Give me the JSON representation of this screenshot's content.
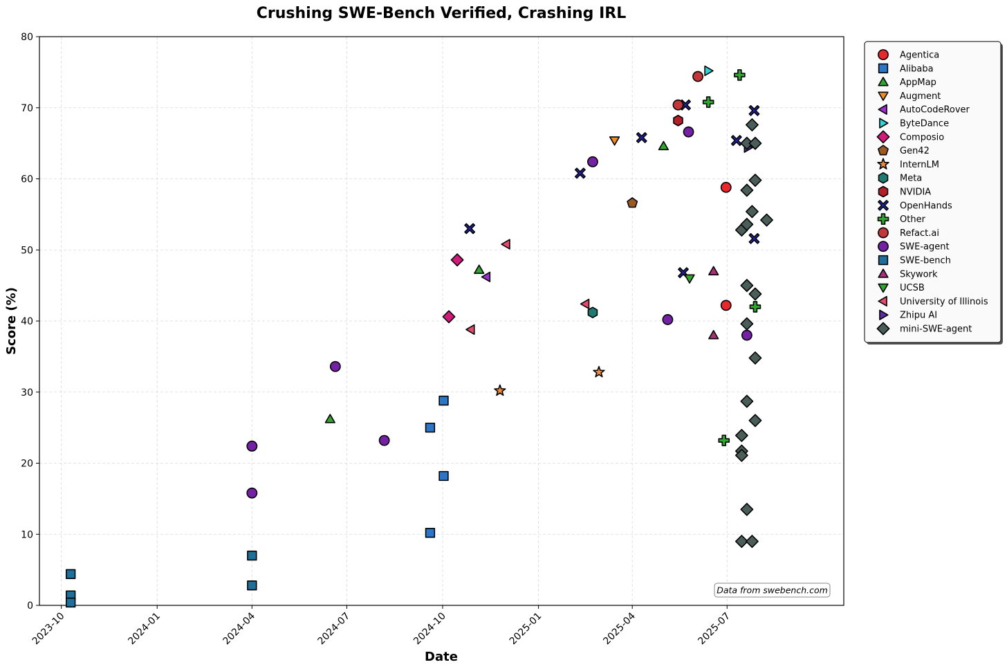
{
  "chart_data": {
    "type": "scatter",
    "title": "Crushing SWE-Bench Verified, Crashing IRL",
    "xlabel": "Date",
    "ylabel": "Score (%)",
    "xlim": [
      "2023-09-10",
      "2025-10-21"
    ],
    "ylim": [
      0,
      80
    ],
    "x_ticks": [
      "2023-10",
      "2024-01",
      "2024-04",
      "2024-07",
      "2024-10",
      "2025-01",
      "2025-04",
      "2025-07"
    ],
    "y_ticks": [
      0,
      10,
      20,
      30,
      40,
      50,
      60,
      70,
      80
    ],
    "grid": true,
    "legend_position": "outside-right",
    "annotation": "Data from swebench.com",
    "series": [
      {
        "name": "Agentica",
        "marker": "circle",
        "color": "#e8282b",
        "points": [
          [
            "2025-06-30",
            58.8
          ],
          [
            "2025-06-30",
            42.2
          ]
        ]
      },
      {
        "name": "Alibaba",
        "marker": "square",
        "color": "#2b76c9",
        "points": [
          [
            "2024-09-19",
            25.0
          ],
          [
            "2024-09-19",
            10.2
          ],
          [
            "2024-10-02",
            28.8
          ],
          [
            "2024-10-02",
            18.2
          ]
        ]
      },
      {
        "name": "AppMap",
        "marker": "triangle-up",
        "color": "#2fa62f",
        "points": [
          [
            "2024-06-15",
            26.2
          ],
          [
            "2024-11-05",
            47.2
          ],
          [
            "2025-05-01",
            64.6
          ]
        ]
      },
      {
        "name": "Augment",
        "marker": "triangle-down",
        "color": "#ef8a2a",
        "points": [
          [
            "2025-03-15",
            65.4
          ]
        ]
      },
      {
        "name": "AutoCodeRover",
        "marker": "triangle-left",
        "color": "#a02fd0",
        "points": [
          [
            "2024-11-12",
            46.2
          ]
        ]
      },
      {
        "name": "ByteDance",
        "marker": "triangle-right",
        "color": "#2ed3d6",
        "points": [
          [
            "2025-06-13",
            75.2
          ]
        ]
      },
      {
        "name": "Composio",
        "marker": "diamond",
        "color": "#d11a7a",
        "points": [
          [
            "2024-10-15",
            48.6
          ],
          [
            "2024-10-07",
            40.6
          ]
        ]
      },
      {
        "name": "Gen42",
        "marker": "pentagon",
        "color": "#9c5a23",
        "points": [
          [
            "2025-04-01",
            56.6
          ]
        ]
      },
      {
        "name": "InternLM",
        "marker": "star",
        "color": "#f08c3a",
        "points": [
          [
            "2024-11-25",
            30.2
          ],
          [
            "2025-02-28",
            32.8
          ]
        ]
      },
      {
        "name": "Meta",
        "marker": "hexagon",
        "color": "#1f7a72",
        "points": [
          [
            "2025-02-22",
            41.2
          ]
        ]
      },
      {
        "name": "NVIDIA",
        "marker": "hexagon",
        "color": "#b3202a",
        "points": [
          [
            "2025-05-15",
            68.2
          ]
        ]
      },
      {
        "name": "OpenHands",
        "marker": "x",
        "color": "#2424a8",
        "points": [
          [
            "2024-10-27",
            53.0
          ],
          [
            "2025-02-10",
            60.8
          ],
          [
            "2025-04-10",
            65.8
          ],
          [
            "2025-05-20",
            46.8
          ],
          [
            "2025-05-22",
            70.4
          ],
          [
            "2025-07-10",
            65.4
          ],
          [
            "2025-07-27",
            69.6
          ],
          [
            "2025-07-27",
            51.6
          ]
        ]
      },
      {
        "name": "Other",
        "marker": "plus",
        "color": "#2fa62f",
        "points": [
          [
            "2025-06-13",
            70.8
          ],
          [
            "2025-07-13",
            74.6
          ],
          [
            "2025-07-28",
            42.0
          ],
          [
            "2025-06-28",
            23.2
          ]
        ]
      },
      {
        "name": "Refact.ai",
        "marker": "circle",
        "color": "#c2383a",
        "points": [
          [
            "2025-05-15",
            70.4
          ],
          [
            "2025-06-03",
            74.4
          ]
        ]
      },
      {
        "name": "SWE-agent",
        "marker": "circle",
        "color": "#7421a6",
        "points": [
          [
            "2024-04-01",
            22.4
          ],
          [
            "2024-04-01",
            15.8
          ],
          [
            "2024-06-20",
            33.6
          ],
          [
            "2024-08-06",
            23.2
          ],
          [
            "2025-02-22",
            62.4
          ],
          [
            "2025-05-05",
            40.2
          ],
          [
            "2025-05-25",
            66.6
          ],
          [
            "2025-07-20",
            38.0
          ]
        ]
      },
      {
        "name": "SWE-bench",
        "marker": "square",
        "color": "#1f6f9b",
        "points": [
          [
            "2023-10-10",
            4.4
          ],
          [
            "2023-10-10",
            1.4
          ],
          [
            "2023-10-10",
            0.4
          ],
          [
            "2024-04-01",
            7.0
          ],
          [
            "2024-04-01",
            2.8
          ]
        ]
      },
      {
        "name": "Skywork",
        "marker": "triangle-up",
        "color": "#a83279",
        "points": [
          [
            "2025-06-18",
            47.0
          ],
          [
            "2025-06-18",
            38.0
          ]
        ]
      },
      {
        "name": "UCSB",
        "marker": "triangle-down",
        "color": "#2fa62f",
        "points": [
          [
            "2025-05-26",
            46.0
          ]
        ]
      },
      {
        "name": "University of Illinois",
        "marker": "triangle-left",
        "color": "#e54b6e",
        "points": [
          [
            "2024-12-01",
            50.8
          ],
          [
            "2024-10-28",
            38.8
          ],
          [
            "2025-02-15",
            42.4
          ]
        ]
      },
      {
        "name": "Zhipu AI",
        "marker": "triangle-right",
        "color": "#5e2aa8",
        "points": [
          [
            "2025-07-21",
            64.4
          ]
        ]
      },
      {
        "name": "mini-SWE-agent",
        "marker": "diamond",
        "color": "#4a5d58",
        "points": [
          [
            "2025-07-20",
            65.0
          ],
          [
            "2025-07-25",
            67.6
          ],
          [
            "2025-07-28",
            65.0
          ],
          [
            "2025-07-20",
            58.4
          ],
          [
            "2025-07-28",
            59.8
          ],
          [
            "2025-07-25",
            55.4
          ],
          [
            "2025-07-15",
            52.8
          ],
          [
            "2025-07-20",
            53.6
          ],
          [
            "2025-08-08",
            54.2
          ],
          [
            "2025-07-20",
            45.0
          ],
          [
            "2025-07-28",
            43.8
          ],
          [
            "2025-07-20",
            39.6
          ],
          [
            "2025-07-28",
            34.8
          ],
          [
            "2025-07-20",
            28.7
          ],
          [
            "2025-07-28",
            26.0
          ],
          [
            "2025-07-15",
            23.9
          ],
          [
            "2025-07-15",
            21.7
          ],
          [
            "2025-07-15",
            21.1
          ],
          [
            "2025-07-20",
            13.5
          ],
          [
            "2025-07-15",
            9.0
          ],
          [
            "2025-07-25",
            9.0
          ]
        ]
      }
    ]
  }
}
